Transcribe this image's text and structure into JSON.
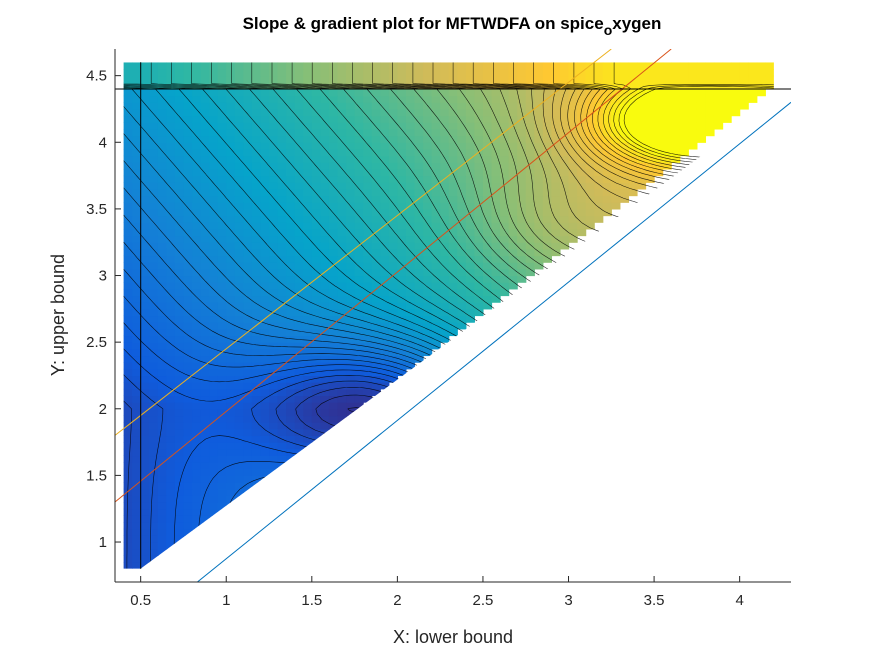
{
  "chart_data": {
    "type": "heatmap",
    "title": "Slope & gradient plot for MFTWDFA on spice",
    "title_subscript": "o",
    "title_suffix": "xygen",
    "xlabel": "X: lower bound",
    "ylabel": "Y: upper bound",
    "xlim": [
      0.35,
      4.3
    ],
    "ylim": [
      0.7,
      4.7
    ],
    "xticks": [
      0.5,
      1,
      1.5,
      2,
      2.5,
      3,
      3.5,
      4
    ],
    "xtick_labels": [
      "0.5",
      "1",
      "1.5",
      "2",
      "2.5",
      "3",
      "3.5",
      "4"
    ],
    "yticks": [
      1,
      1.5,
      2,
      2.5,
      3,
      3.5,
      4,
      4.5
    ],
    "ytick_labels": [
      "1",
      "1.5",
      "2",
      "2.5",
      "3",
      "3.5",
      "4",
      "4.5"
    ],
    "data_extent": {
      "x": [
        0.4,
        4.2
      ],
      "y": [
        0.8,
        4.6
      ]
    },
    "colormap": "parula",
    "colormap_stops": [
      "#352a87",
      "#0f5cdd",
      "#1481d6",
      "#06a4ca",
      "#2eb7a4",
      "#87bf77",
      "#d1bb59",
      "#fec832",
      "#f9fb0e"
    ],
    "value_field": {
      "min_point": {
        "x": 1.9,
        "y": 2.0
      },
      "max_point": {
        "x": 3.7,
        "y": 4.15
      },
      "top_strip_level": 0.45
    },
    "reference_lines": [
      {
        "x1": 0.35,
        "y1": 1.3,
        "x2": 3.6,
        "y2": 4.7,
        "color": "#d95319"
      },
      {
        "x1": 0.35,
        "y1": 1.8,
        "x2": 3.25,
        "y2": 4.7,
        "color": "#edb120"
      },
      {
        "x1": 0.35,
        "y1": 0.2,
        "x2": 4.3,
        "y2": 4.3,
        "color": "#0072bd"
      },
      {
        "x1": 0.35,
        "y1": 4.4,
        "x2": 4.3,
        "y2": 4.4,
        "color": "#000000"
      },
      {
        "x1": 0.5,
        "y1": 0.8,
        "x2": 0.5,
        "y2": 4.6,
        "color": "#000000"
      }
    ]
  }
}
